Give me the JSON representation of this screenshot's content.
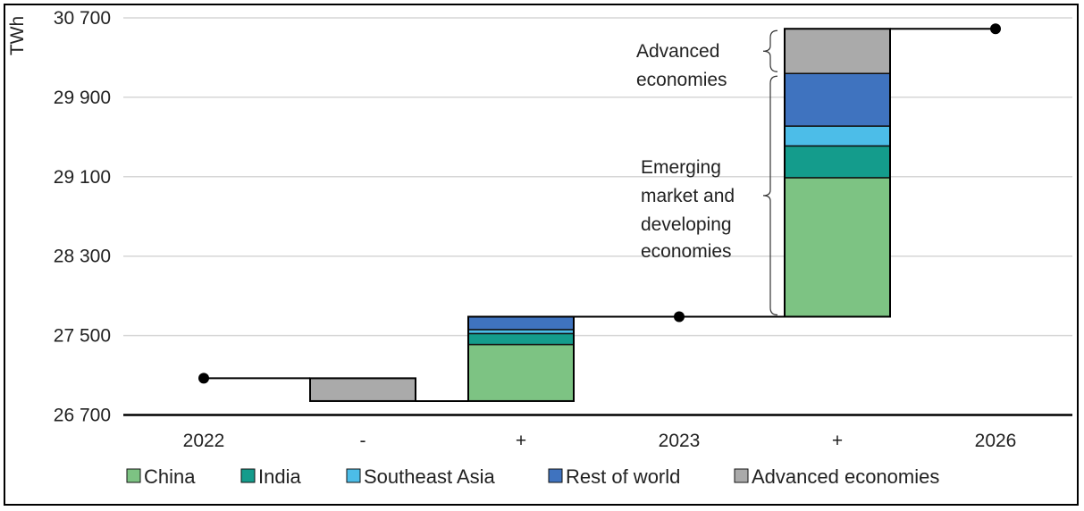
{
  "chart_data": {
    "type": "bar",
    "subtype": "waterfall-stacked",
    "ylabel": "TWh",
    "ylim": [
      26700,
      30700
    ],
    "yticks": [
      {
        "value": 26700,
        "label": "26 700"
      },
      {
        "value": 27500,
        "label": "27 500"
      },
      {
        "value": 28300,
        "label": "28 300"
      },
      {
        "value": 29100,
        "label": "29 100"
      },
      {
        "value": 29900,
        "label": "29 900"
      },
      {
        "value": 30700,
        "label": "30 700"
      }
    ],
    "categories": [
      "2022",
      "-",
      "+",
      "2023",
      "+",
      "2026"
    ],
    "totals": [
      {
        "category": "2022",
        "value": 27070
      },
      {
        "category": "2023",
        "value": 27690
      },
      {
        "category": "2026",
        "value": 30590
      }
    ],
    "series": [
      {
        "name": "China",
        "color": "#7dc383",
        "segments": [
          {
            "category": "+",
            "index": 2,
            "from": 26840,
            "to": 27410
          },
          {
            "category": "+",
            "index": 4,
            "from": 27690,
            "to": 29090
          }
        ]
      },
      {
        "name": "India",
        "color": "#149c8c",
        "segments": [
          {
            "category": "+",
            "index": 2,
            "from": 27410,
            "to": 27520
          },
          {
            "category": "+",
            "index": 4,
            "from": 29090,
            "to": 29410
          }
        ]
      },
      {
        "name": "Southeast Asia",
        "color": "#4cbde8",
        "segments": [
          {
            "category": "+",
            "index": 2,
            "from": 27520,
            "to": 27560
          },
          {
            "category": "+",
            "index": 4,
            "from": 29410,
            "to": 29610
          }
        ]
      },
      {
        "name": "Rest of world",
        "color": "#3f73bf",
        "segments": [
          {
            "category": "+",
            "index": 2,
            "from": 27560,
            "to": 27690
          },
          {
            "category": "+",
            "index": 4,
            "from": 29610,
            "to": 30140
          }
        ]
      },
      {
        "name": "Advanced economies",
        "color": "#aaaaaa",
        "segments": [
          {
            "category": "-",
            "index": 1,
            "from": 26840,
            "to": 27070
          },
          {
            "category": "+",
            "index": 4,
            "from": 30140,
            "to": 30590
          }
        ]
      }
    ],
    "annotations": [
      {
        "text": [
          "Advanced",
          "economies"
        ],
        "brace_from": 30140,
        "brace_to": 30590
      },
      {
        "text": [
          "Emerging",
          "market and",
          "developing",
          "economies"
        ],
        "brace_from": 27690,
        "brace_to": 30140
      }
    ],
    "legend": {
      "position": "bottom"
    }
  }
}
